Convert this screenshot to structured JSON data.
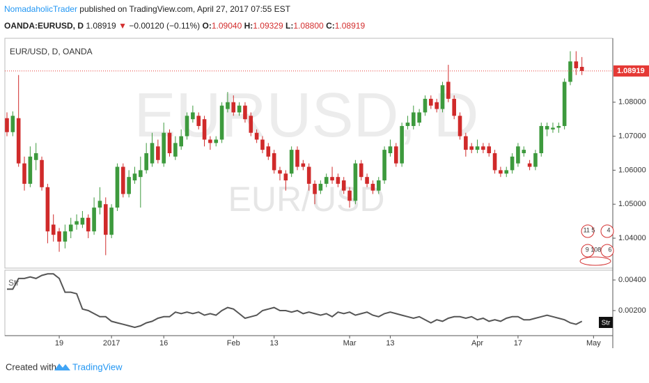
{
  "header": {
    "author": "NomadaholicTrader",
    "published": "published on TradingView.com, April 27, 2017 07:55 EST",
    "symbol": "OANDA:EURUSD, D",
    "last": "1.08919",
    "arrow": "▼",
    "change": "−0.00120 (−0.11%)",
    "o_label": "O:",
    "o": "1.09040",
    "h_label": "H:",
    "h": "1.09329",
    "l_label": "L:",
    "l": "1.08800",
    "c_label": "C:",
    "c": "1.08919"
  },
  "events": [
    "11 5",
    "4",
    "9 108",
    "6"
  ],
  "footer": {
    "created": "Created with",
    "brand": "TradingView"
  },
  "chart_data": [
    {
      "type": "candlestick",
      "title": "EUR/USD, D, OANDA",
      "watermark": "EURUSD, D",
      "watermark_sub": "EUR/USD",
      "up_color": "#3d9a3d",
      "down_color": "#d02a2a",
      "last_price": 1.08919,
      "last_price_color": "#e53935",
      "ylim": [
        1.0312,
        1.0988
      ],
      "yticks": [
        {
          "value": 1.04,
          "label": "1.04000"
        },
        {
          "value": 1.05,
          "label": "1.05000"
        },
        {
          "value": 1.06,
          "label": "1.06000"
        },
        {
          "value": 1.07,
          "label": "1.07000"
        },
        {
          "value": 1.08,
          "label": "1.08000"
        }
      ],
      "open": [
        1.0753,
        1.0712,
        1.0753,
        1.062,
        1.056,
        1.063,
        1.063,
        1.055,
        1.044,
        1.042,
        1.039,
        1.042,
        1.044,
        1.044,
        1.046,
        1.042,
        1.049,
        1.05,
        1.041,
        1.049,
        1.061,
        1.053,
        1.057,
        1.058,
        1.06,
        1.062,
        1.067,
        1.062,
        1.071,
        1.064,
        1.067,
        1.07,
        1.075,
        1.076,
        1.075,
        1.069,
        1.068,
        1.069,
        1.078,
        1.08,
        1.077,
        1.079,
        1.076,
        1.071,
        1.069,
        1.067,
        1.065,
        1.06,
        1.059,
        1.059,
        1.066,
        1.062,
        1.061,
        1.056,
        1.054,
        1.056,
        1.058,
        1.058,
        1.057,
        1.054,
        1.051,
        1.062,
        1.058,
        1.056,
        1.054,
        1.057,
        1.065,
        1.067,
        1.062,
        1.073,
        1.073,
        1.074,
        1.077,
        1.081,
        1.08,
        1.078,
        1.086,
        1.081,
        1.076,
        1.07,
        1.067,
        1.066,
        1.067,
        1.067,
        1.065,
        1.06,
        1.059,
        1.06,
        1.062,
        1.065,
        1.062,
        1.061,
        1.065,
        1.072,
        1.072,
        1.0725,
        1.073,
        1.086,
        1.092,
        1.0904
      ],
      "high": [
        1.077,
        1.0773,
        1.088,
        1.064,
        1.067,
        1.068,
        1.064,
        1.056,
        1.047,
        1.043,
        1.044,
        1.046,
        1.047,
        1.048,
        1.047,
        1.052,
        1.055,
        1.052,
        1.05,
        1.062,
        1.062,
        1.06,
        1.061,
        1.064,
        1.068,
        1.071,
        1.069,
        1.074,
        1.072,
        1.07,
        1.072,
        1.077,
        1.079,
        1.077,
        1.076,
        1.07,
        1.07,
        1.08,
        1.083,
        1.082,
        1.08,
        1.08,
        1.077,
        1.072,
        1.07,
        1.068,
        1.066,
        1.061,
        1.06,
        1.067,
        1.067,
        1.063,
        1.062,
        1.057,
        1.057,
        1.059,
        1.061,
        1.059,
        1.058,
        1.055,
        1.063,
        1.063,
        1.059,
        1.057,
        1.058,
        1.067,
        1.069,
        1.068,
        1.074,
        1.076,
        1.079,
        1.078,
        1.082,
        1.082,
        1.081,
        1.086,
        1.091,
        1.082,
        1.077,
        1.071,
        1.068,
        1.069,
        1.068,
        1.068,
        1.066,
        1.061,
        1.061,
        1.065,
        1.068,
        1.067,
        1.063,
        1.066,
        1.074,
        1.074,
        1.074,
        1.074,
        1.087,
        1.095,
        1.095,
        1.09329
      ],
      "low": [
        1.07,
        1.07,
        1.061,
        1.054,
        1.055,
        1.06,
        1.054,
        1.0385,
        1.039,
        1.036,
        1.037,
        1.04,
        1.0425,
        1.043,
        1.04,
        1.041,
        1.047,
        1.035,
        1.04,
        1.048,
        1.052,
        1.052,
        1.056,
        1.049,
        1.059,
        1.061,
        1.062,
        1.061,
        1.064,
        1.063,
        1.066,
        1.069,
        1.074,
        1.072,
        1.067,
        1.066,
        1.067,
        1.068,
        1.077,
        1.076,
        1.076,
        1.074,
        1.07,
        1.068,
        1.065,
        1.063,
        1.059,
        1.057,
        1.054,
        1.058,
        1.06,
        1.06,
        1.054,
        1.05,
        1.053,
        1.055,
        1.056,
        1.055,
        1.053,
        1.049,
        1.05,
        1.057,
        1.055,
        1.053,
        1.053,
        1.056,
        1.064,
        1.061,
        1.061,
        1.072,
        1.072,
        1.073,
        1.076,
        1.078,
        1.077,
        1.077,
        1.08,
        1.075,
        1.069,
        1.064,
        1.065,
        1.065,
        1.065,
        1.064,
        1.059,
        1.058,
        1.058,
        1.059,
        1.061,
        1.064,
        1.06,
        1.06,
        1.064,
        1.07,
        1.071,
        1.071,
        1.072,
        1.085,
        1.088,
        1.088
      ],
      "close": [
        1.0712,
        1.076,
        1.062,
        1.056,
        1.064,
        1.065,
        1.055,
        1.042,
        1.041,
        1.039,
        1.042,
        1.044,
        1.045,
        1.046,
        1.042,
        1.049,
        1.051,
        1.041,
        1.049,
        1.061,
        1.053,
        1.058,
        1.059,
        1.06,
        1.065,
        1.068,
        1.063,
        1.071,
        1.065,
        1.068,
        1.07,
        1.076,
        1.077,
        1.073,
        1.069,
        1.068,
        1.069,
        1.079,
        1.08,
        1.077,
        1.079,
        1.075,
        1.071,
        1.069,
        1.066,
        1.064,
        1.06,
        1.059,
        1.057,
        1.066,
        1.061,
        1.061,
        1.056,
        1.053,
        1.056,
        1.058,
        1.057,
        1.056,
        1.054,
        1.051,
        1.062,
        1.058,
        1.056,
        1.054,
        1.057,
        1.066,
        1.067,
        1.062,
        1.073,
        1.074,
        1.077,
        1.077,
        1.081,
        1.079,
        1.078,
        1.085,
        1.081,
        1.076,
        1.07,
        1.066,
        1.066,
        1.067,
        1.066,
        1.065,
        1.06,
        1.059,
        1.06,
        1.064,
        1.067,
        1.066,
        1.061,
        1.065,
        1.073,
        1.073,
        1.0725,
        1.073,
        1.086,
        1.092,
        1.09,
        1.08919
      ]
    },
    {
      "type": "line",
      "title": "Str",
      "ylim": [
        0.00036,
        0.00464
      ],
      "yticks": [
        {
          "value": 0.002,
          "label": "0.00200"
        },
        {
          "value": 0.004,
          "label": "0.00400"
        }
      ],
      "categories": [
        null,
        null,
        null,
        null,
        null,
        null,
        null,
        null,
        null,
        "19",
        null,
        null,
        null,
        null,
        null,
        null,
        null,
        null,
        "2017",
        null,
        null,
        null,
        null,
        null,
        null,
        null,
        null,
        "16",
        null,
        null,
        null,
        null,
        null,
        null,
        null,
        null,
        null,
        null,
        null,
        "Feb",
        null,
        null,
        null,
        null,
        null,
        null,
        "13",
        null,
        null,
        null,
        null,
        null,
        null,
        null,
        null,
        null,
        null,
        null,
        null,
        "Mar",
        null,
        null,
        null,
        null,
        null,
        null,
        "13",
        null,
        null,
        null,
        null,
        null,
        null,
        null,
        null,
        null,
        null,
        null,
        null,
        null,
        null,
        "Apr",
        null,
        null,
        null,
        null,
        null,
        null,
        "17",
        null,
        null,
        null,
        null,
        null,
        null,
        null,
        null,
        null,
        null,
        null,
        null,
        "May"
      ],
      "series": [
        {
          "name": "Str",
          "color": "#555555",
          "values": [
            0.0034,
            0.0034,
            0.0041,
            0.0041,
            0.0042,
            0.0041,
            0.0043,
            0.0044,
            0.0044,
            0.0041,
            0.0032,
            0.0032,
            0.0031,
            0.0021,
            0.002,
            0.0018,
            0.0016,
            0.0016,
            0.0013,
            0.0012,
            0.0011,
            0.001,
            0.0009,
            0.001,
            0.0012,
            0.0013,
            0.0015,
            0.0016,
            0.0016,
            0.0019,
            0.0018,
            0.0019,
            0.0018,
            0.0019,
            0.0017,
            0.0018,
            0.0017,
            0.002,
            0.0022,
            0.0021,
            0.0018,
            0.0015,
            0.0016,
            0.0017,
            0.002,
            0.0021,
            0.0022,
            0.002,
            0.002,
            0.0019,
            0.002,
            0.0018,
            0.0019,
            0.0018,
            0.0017,
            0.0018,
            0.0016,
            0.0019,
            0.0018,
            0.0019,
            0.0017,
            0.0018,
            0.0019,
            0.0017,
            0.0016,
            0.0018,
            0.0019,
            0.0018,
            0.0017,
            0.0016,
            0.0015,
            0.0016,
            0.0014,
            0.0012,
            0.0014,
            0.0013,
            0.0015,
            0.0016,
            0.0016,
            0.0015,
            0.0016,
            0.0014,
            0.0015,
            0.0013,
            0.0014,
            0.0013,
            0.0015,
            0.0016,
            0.0016,
            0.0014,
            0.0014,
            0.0015,
            0.0016,
            0.0017,
            0.0016,
            0.0015,
            0.0014,
            0.0012,
            0.0011,
            0.0013,
            null,
            null
          ]
        }
      ]
    }
  ]
}
